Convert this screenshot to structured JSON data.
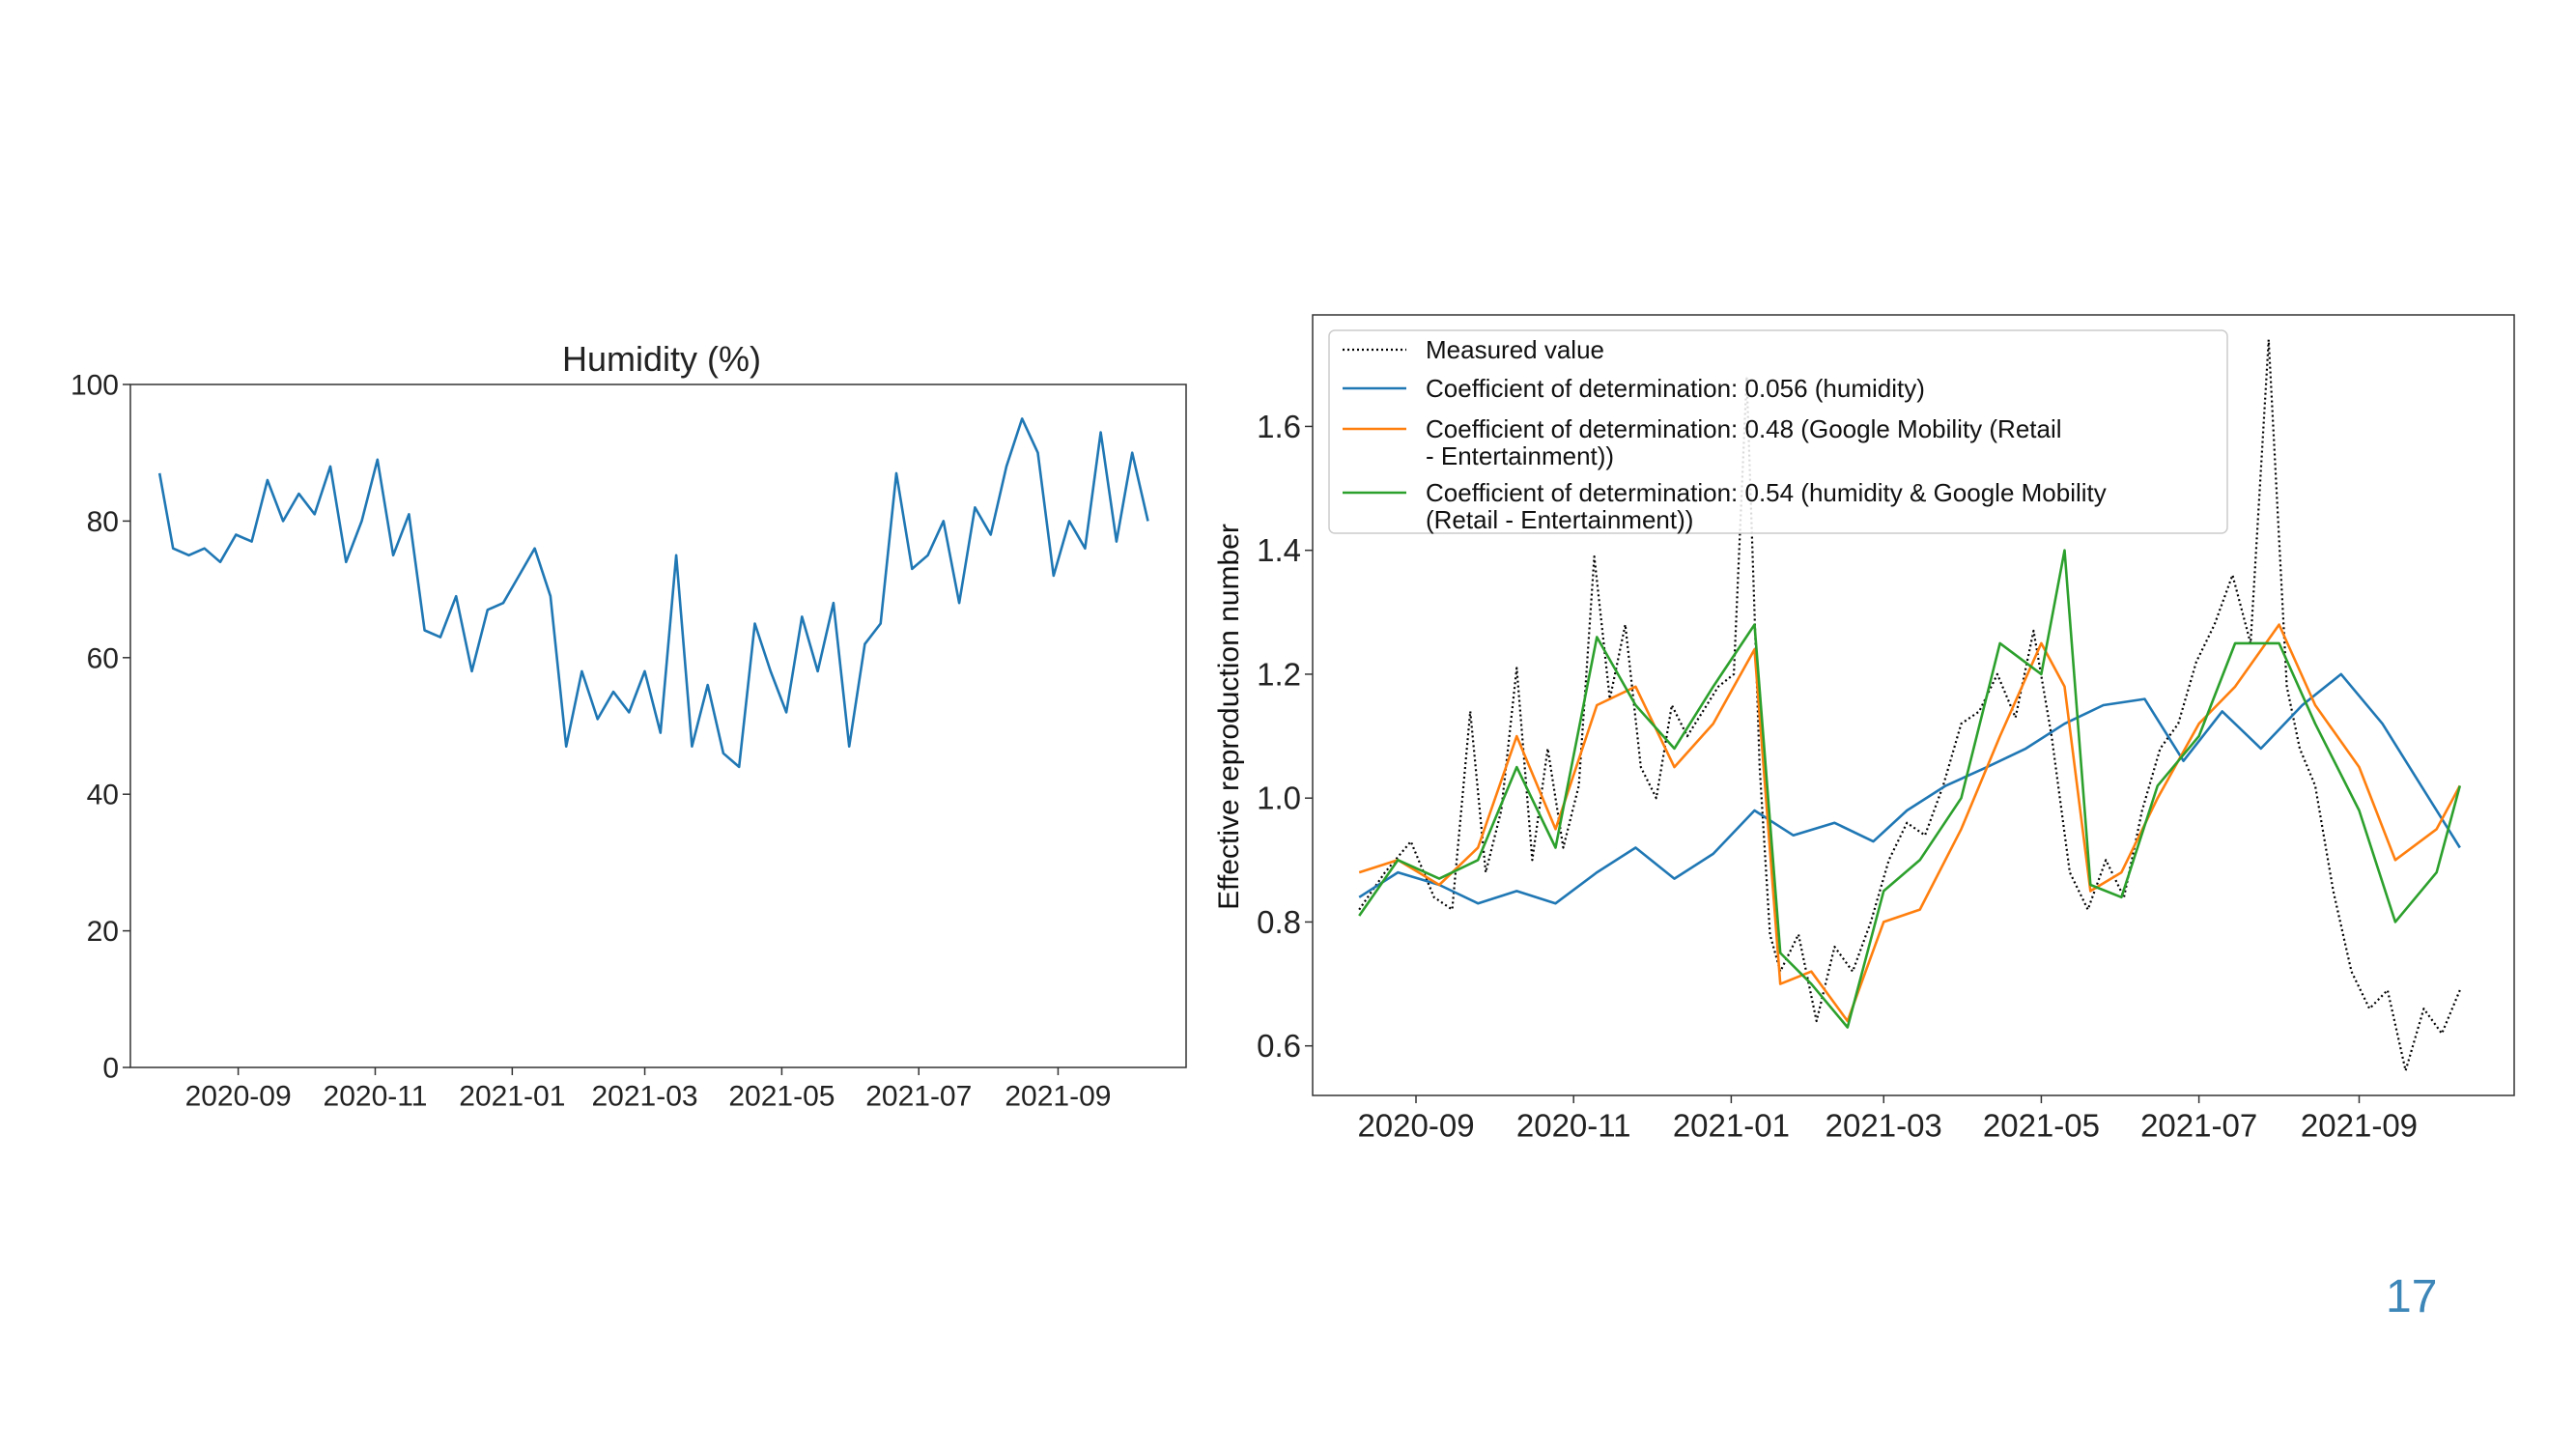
{
  "page": {
    "number": "17"
  },
  "chart_data": [
    {
      "type": "line",
      "title": "Humidity (%)",
      "xlabel": "",
      "ylabel": "",
      "ylim": [
        0,
        100
      ],
      "yticks": [
        0,
        20,
        40,
        60,
        80,
        100
      ],
      "xticks": [
        "2020-09",
        "2020-11",
        "2021-01",
        "2021-03",
        "2021-05",
        "2021-07",
        "2021-09"
      ],
      "xlim": [
        "2020-07-15",
        "2021-10-28"
      ],
      "grid": false,
      "series": [
        {
          "color": "#1f77b4",
          "x": [
            "2020-07-28",
            "2020-08-03",
            "2020-08-10",
            "2020-08-17",
            "2020-08-24",
            "2020-08-31",
            "2020-09-07",
            "2020-09-14",
            "2020-09-21",
            "2020-09-28",
            "2020-10-05",
            "2020-10-12",
            "2020-10-19",
            "2020-10-26",
            "2020-11-02",
            "2020-11-09",
            "2020-11-16",
            "2020-11-23",
            "2020-11-30",
            "2020-12-07",
            "2020-12-14",
            "2020-12-21",
            "2020-12-28",
            "2021-01-04",
            "2021-01-11",
            "2021-01-18",
            "2021-01-25",
            "2021-02-01",
            "2021-02-08",
            "2021-02-15",
            "2021-02-22",
            "2021-03-01",
            "2021-03-08",
            "2021-03-15",
            "2021-03-22",
            "2021-03-29",
            "2021-04-05",
            "2021-04-12",
            "2021-04-19",
            "2021-04-26",
            "2021-05-03",
            "2021-05-10",
            "2021-05-17",
            "2021-05-24",
            "2021-05-31",
            "2021-06-07",
            "2021-06-14",
            "2021-06-21",
            "2021-06-28",
            "2021-07-05",
            "2021-07-12",
            "2021-07-19",
            "2021-07-26",
            "2021-08-02",
            "2021-08-09",
            "2021-08-16",
            "2021-08-23",
            "2021-08-30",
            "2021-09-06",
            "2021-09-13",
            "2021-09-20",
            "2021-09-27",
            "2021-10-04",
            "2021-10-11"
          ],
          "values": [
            87,
            76,
            75,
            76,
            74,
            78,
            77,
            86,
            80,
            84,
            81,
            88,
            74,
            80,
            89,
            75,
            81,
            64,
            63,
            69,
            58,
            67,
            68,
            72,
            76,
            69,
            47,
            58,
            51,
            55,
            52,
            58,
            49,
            75,
            47,
            56,
            46,
            44,
            65,
            58,
            52,
            66,
            58,
            68,
            47,
            62,
            65,
            87,
            73,
            75,
            80,
            68,
            82,
            78,
            88,
            95,
            90,
            72,
            80,
            76,
            93,
            77,
            90,
            80
          ]
        }
      ]
    },
    {
      "type": "line",
      "title": "",
      "xlabel": "",
      "ylabel": "Effective reproduction number",
      "ylim": [
        0.52,
        1.78
      ],
      "yticks": [
        0.6,
        0.8,
        1.0,
        1.2,
        1.4,
        1.6
      ],
      "xticks": [
        "2020-09",
        "2020-11",
        "2021-01",
        "2021-03",
        "2021-05",
        "2021-07",
        "2021-09"
      ],
      "xlim": [
        "2020-07-23",
        "2021-10-31"
      ],
      "grid": false,
      "legend": "top-left",
      "series": [
        {
          "name": "Measured value",
          "color": "#000000",
          "dash": "dotted",
          "x": [
            "2020-08-10",
            "2020-08-20",
            "2020-08-30",
            "2020-09-08",
            "2020-09-15",
            "2020-09-22",
            "2020-09-28",
            "2020-10-04",
            "2020-10-10",
            "2020-10-16",
            "2020-10-22",
            "2020-10-28",
            "2020-11-03",
            "2020-11-09",
            "2020-11-15",
            "2020-11-21",
            "2020-11-27",
            "2020-12-03",
            "2020-12-09",
            "2020-12-15",
            "2020-12-21",
            "2020-12-27",
            "2021-01-02",
            "2021-01-07",
            "2021-01-12",
            "2021-01-16",
            "2021-01-20",
            "2021-01-27",
            "2021-02-03",
            "2021-02-10",
            "2021-02-17",
            "2021-02-24",
            "2021-03-03",
            "2021-03-10",
            "2021-03-17",
            "2021-03-24",
            "2021-03-31",
            "2021-04-07",
            "2021-04-14",
            "2021-04-21",
            "2021-04-28",
            "2021-05-05",
            "2021-05-12",
            "2021-05-19",
            "2021-05-26",
            "2021-06-02",
            "2021-06-09",
            "2021-06-16",
            "2021-06-23",
            "2021-06-30",
            "2021-07-07",
            "2021-07-14",
            "2021-07-21",
            "2021-07-28",
            "2021-08-04",
            "2021-08-09",
            "2021-08-15",
            "2021-08-22",
            "2021-08-29",
            "2021-09-05",
            "2021-09-12",
            "2021-09-19",
            "2021-09-26",
            "2021-10-03",
            "2021-10-10"
          ],
          "values": [
            0.82,
            0.88,
            0.93,
            0.84,
            0.82,
            1.14,
            0.88,
            0.98,
            1.21,
            0.9,
            1.08,
            0.92,
            1.02,
            1.39,
            1.16,
            1.28,
            1.05,
            1.0,
            1.15,
            1.1,
            1.14,
            1.18,
            1.2,
            1.68,
            1.05,
            0.78,
            0.72,
            0.78,
            0.64,
            0.76,
            0.72,
            0.8,
            0.9,
            0.96,
            0.94,
            1.02,
            1.12,
            1.14,
            1.2,
            1.13,
            1.27,
            1.1,
            0.88,
            0.82,
            0.9,
            0.84,
            0.98,
            1.08,
            1.12,
            1.22,
            1.28,
            1.36,
            1.25,
            1.74,
            1.18,
            1.08,
            1.02,
            0.85,
            0.72,
            0.66,
            0.69,
            0.56,
            0.66,
            0.62,
            0.69
          ]
        },
        {
          "name": "Coefficient of determination: 0.056 (humidity)",
          "color": "#1f77b4",
          "x": [
            "2020-08-10",
            "2020-08-25",
            "2020-09-10",
            "2020-09-25",
            "2020-10-10",
            "2020-10-25",
            "2020-11-10",
            "2020-11-25",
            "2020-12-10",
            "2020-12-25",
            "2021-01-10",
            "2021-01-25",
            "2021-02-10",
            "2021-02-25",
            "2021-03-10",
            "2021-03-25",
            "2021-04-10",
            "2021-04-25",
            "2021-05-10",
            "2021-05-25",
            "2021-06-10",
            "2021-06-25",
            "2021-07-10",
            "2021-07-25",
            "2021-08-10",
            "2021-08-25",
            "2021-09-10",
            "2021-09-25",
            "2021-10-10"
          ],
          "values": [
            0.84,
            0.88,
            0.86,
            0.83,
            0.85,
            0.83,
            0.88,
            0.92,
            0.87,
            0.91,
            0.98,
            0.94,
            0.96,
            0.93,
            0.98,
            1.02,
            1.05,
            1.08,
            1.12,
            1.15,
            1.16,
            1.06,
            1.14,
            1.08,
            1.15,
            1.2,
            1.12,
            1.02,
            0.92
          ]
        },
        {
          "name": "Coefficient of determination: 0.48 (Google Mobility (Retail - Entertainment))",
          "color": "#ff7f0e",
          "x": [
            "2020-08-10",
            "2020-08-25",
            "2020-09-10",
            "2020-09-25",
            "2020-10-10",
            "2020-10-25",
            "2020-11-10",
            "2020-11-25",
            "2020-12-10",
            "2020-12-25",
            "2021-01-10",
            "2021-01-20",
            "2021-02-01",
            "2021-02-15",
            "2021-03-01",
            "2021-03-15",
            "2021-03-31",
            "2021-04-15",
            "2021-05-01",
            "2021-05-10",
            "2021-05-20",
            "2021-06-01",
            "2021-06-15",
            "2021-07-01",
            "2021-07-15",
            "2021-08-01",
            "2021-08-15",
            "2021-09-01",
            "2021-09-15",
            "2021-10-01",
            "2021-10-10"
          ],
          "values": [
            0.88,
            0.9,
            0.86,
            0.92,
            1.1,
            0.95,
            1.15,
            1.18,
            1.05,
            1.12,
            1.24,
            0.7,
            0.72,
            0.64,
            0.8,
            0.82,
            0.95,
            1.1,
            1.25,
            1.18,
            0.85,
            0.88,
            1.0,
            1.12,
            1.18,
            1.28,
            1.15,
            1.05,
            0.9,
            0.95,
            1.02
          ]
        },
        {
          "name": "Coefficient of determination: 0.54 (humidity & Google Mobility (Retail - Entertainment))",
          "color": "#2ca02c",
          "x": [
            "2020-08-10",
            "2020-08-25",
            "2020-09-10",
            "2020-09-25",
            "2020-10-10",
            "2020-10-25",
            "2020-11-10",
            "2020-11-25",
            "2020-12-10",
            "2020-12-25",
            "2021-01-10",
            "2021-01-20",
            "2021-02-01",
            "2021-02-15",
            "2021-03-01",
            "2021-03-15",
            "2021-03-31",
            "2021-04-15",
            "2021-05-01",
            "2021-05-10",
            "2021-05-20",
            "2021-06-01",
            "2021-06-15",
            "2021-07-01",
            "2021-07-15",
            "2021-08-01",
            "2021-08-15",
            "2021-09-01",
            "2021-09-15",
            "2021-10-01",
            "2021-10-10"
          ],
          "values": [
            0.81,
            0.9,
            0.87,
            0.9,
            1.05,
            0.92,
            1.26,
            1.15,
            1.08,
            1.18,
            1.28,
            0.75,
            0.7,
            0.63,
            0.85,
            0.9,
            1.0,
            1.25,
            1.2,
            1.4,
            0.86,
            0.84,
            1.02,
            1.1,
            1.25,
            1.25,
            1.12,
            0.98,
            0.8,
            0.88,
            1.02
          ]
        }
      ]
    }
  ]
}
